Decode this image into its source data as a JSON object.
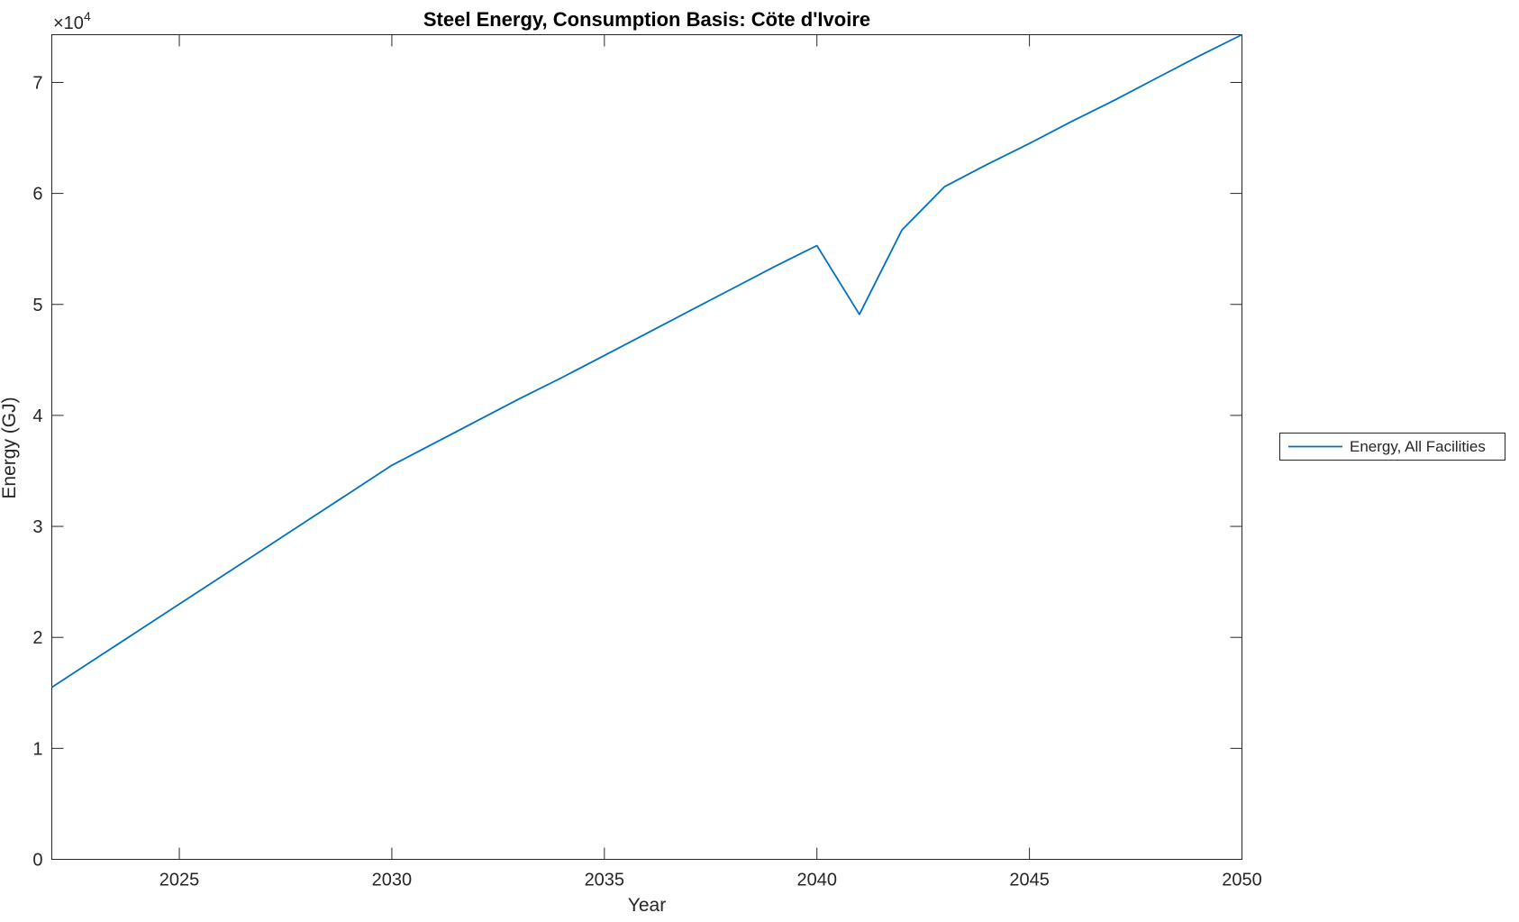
{
  "figure": {
    "title": "Steel Energy, Consumption Basis: Cöte d'Ivoire",
    "axis_offset": {
      "base": "×10",
      "exponent": "4"
    }
  },
  "colors": {
    "series_blue": "#0072BD",
    "axis": "#262626",
    "background": "#ffffff"
  },
  "legend": {
    "position": "outside-right",
    "entries": [
      {
        "label": "Energy, All Facilities",
        "color": "#0072BD"
      }
    ]
  },
  "chart_data": {
    "type": "line",
    "title": "Steel Energy, Consumption Basis: Cöte d'Ivoire",
    "xlabel": "Year",
    "ylabel": "Energy (GJ)",
    "xlim": [
      2022,
      2050
    ],
    "ylim": [
      0,
      74300
    ],
    "xticks": [
      2025,
      2030,
      2035,
      2040,
      2045,
      2050
    ],
    "yticks": [
      0,
      10000,
      20000,
      30000,
      40000,
      50000,
      60000,
      70000
    ],
    "ytick_labels": [
      "0",
      "1",
      "2",
      "3",
      "4",
      "5",
      "6",
      "7"
    ],
    "y_axis_multiplier_shown": "×10^4",
    "grid": false,
    "legend_position": "outside-right",
    "series": [
      {
        "name": "Energy, All Facilities",
        "color": "#0072BD",
        "x": [
          2022,
          2023,
          2024,
          2025,
          2026,
          2027,
          2028,
          2029,
          2030,
          2031,
          2032,
          2033,
          2034,
          2035,
          2036,
          2037,
          2038,
          2039,
          2040,
          2041,
          2042,
          2043,
          2044,
          2045,
          2046,
          2047,
          2048,
          2049,
          2050
        ],
        "y": [
          15500,
          18000,
          20500,
          23000,
          25500,
          28000,
          30500,
          33000,
          35500,
          37500,
          39500,
          41500,
          43400,
          45400,
          47400,
          49400,
          51400,
          53400,
          55300,
          49100,
          56700,
          60600,
          62600,
          64500,
          66500,
          68400,
          70400,
          72400,
          74300
        ]
      }
    ]
  }
}
